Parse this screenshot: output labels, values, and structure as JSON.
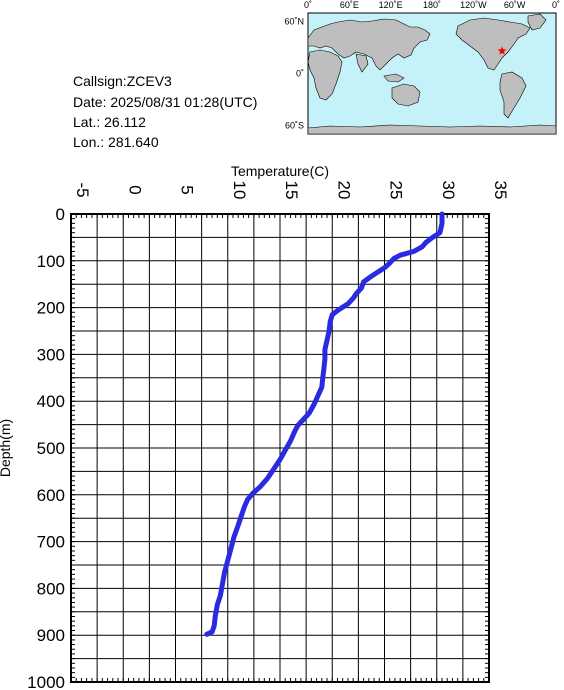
{
  "info": {
    "callsign": "Callsign:ZCEV3",
    "date": "Date:  2025/08/31 01:28(UTC)",
    "lat": "Lat.:   26.112",
    "lon": "Lon.:  281.640"
  },
  "map": {
    "lon_labels": [
      "0˚",
      "60˚E",
      "120˚E",
      "180˚",
      "120˚W",
      "60˚W",
      "0˚"
    ],
    "lat_labels": [
      "60˚N",
      "0˚",
      "60˚S"
    ],
    "ocean_color": "#c4f2f8",
    "land_color": "#bebebe",
    "marker": {
      "lat": 26.112,
      "lon": 281.64,
      "color": "#ff0000"
    }
  },
  "chart_data": {
    "type": "line",
    "title": "",
    "xlabel": "Temperature(C)",
    "ylabel": "Depth(m)",
    "xlim": [
      -5,
      35
    ],
    "ylim": [
      1000,
      0
    ],
    "x_ticks": [
      -5,
      0,
      5,
      10,
      15,
      20,
      25,
      30,
      35
    ],
    "y_ticks": [
      0,
      100,
      200,
      300,
      400,
      500,
      600,
      700,
      800,
      900,
      1000
    ],
    "x_axis_position": "top",
    "grid": true,
    "line_color": "#2a2ae0",
    "series": [
      {
        "name": "",
        "points": [
          [
            30.5,
            0
          ],
          [
            30.5,
            20
          ],
          [
            30.3,
            40
          ],
          [
            29.6,
            50
          ],
          [
            29.0,
            60
          ],
          [
            28.6,
            70
          ],
          [
            27.8,
            80
          ],
          [
            26.5,
            88
          ],
          [
            25.9,
            95
          ],
          [
            25.5,
            105
          ],
          [
            25.0,
            115
          ],
          [
            24.5,
            122
          ],
          [
            23.8,
            132
          ],
          [
            23.0,
            145
          ],
          [
            22.8,
            158
          ],
          [
            22.3,
            170
          ],
          [
            22.0,
            180
          ],
          [
            21.5,
            192
          ],
          [
            20.6,
            205
          ],
          [
            20.0,
            215
          ],
          [
            19.8,
            230
          ],
          [
            19.7,
            250
          ],
          [
            19.5,
            270
          ],
          [
            19.3,
            290
          ],
          [
            19.3,
            310
          ],
          [
            19.2,
            330
          ],
          [
            19.1,
            350
          ],
          [
            19.0,
            370
          ],
          [
            18.6,
            390
          ],
          [
            18.3,
            405
          ],
          [
            17.8,
            425
          ],
          [
            17.2,
            440
          ],
          [
            16.7,
            452
          ],
          [
            16.4,
            465
          ],
          [
            16.0,
            485
          ],
          [
            15.5,
            505
          ],
          [
            15.0,
            525
          ],
          [
            14.4,
            545
          ],
          [
            13.8,
            565
          ],
          [
            13.1,
            583
          ],
          [
            12.4,
            597
          ],
          [
            11.9,
            610
          ],
          [
            11.6,
            625
          ],
          [
            11.3,
            645
          ],
          [
            11.0,
            665
          ],
          [
            10.6,
            690
          ],
          [
            10.3,
            715
          ],
          [
            10.0,
            740
          ],
          [
            9.7,
            765
          ],
          [
            9.5,
            790
          ],
          [
            9.3,
            815
          ],
          [
            9.0,
            835
          ],
          [
            8.8,
            860
          ],
          [
            8.7,
            880
          ],
          [
            8.5,
            893
          ],
          [
            8.0,
            898
          ]
        ]
      }
    ]
  }
}
